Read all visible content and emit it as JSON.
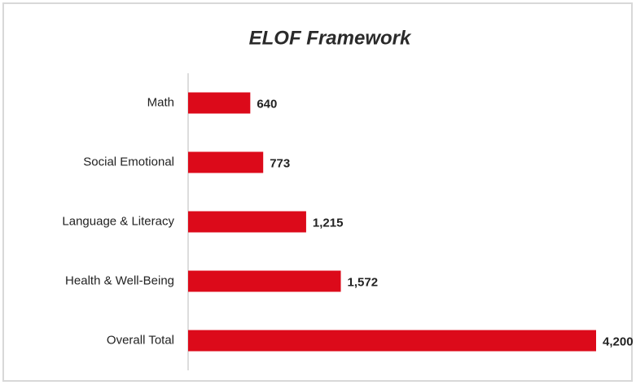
{
  "chart_data": {
    "type": "bar",
    "orientation": "horizontal",
    "title": "ELOF Framework",
    "categories": [
      "Math",
      "Social Emotional",
      "Language & Literacy",
      "Health & Well-Being",
      "Overall Total"
    ],
    "values": [
      640,
      773,
      1215,
      1572,
      4200
    ],
    "value_labels": [
      "640",
      "773",
      "1,215",
      "1,572",
      "4,200"
    ],
    "color": "#dc0a1a"
  }
}
